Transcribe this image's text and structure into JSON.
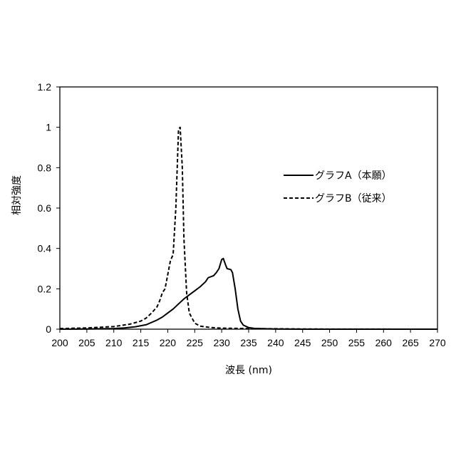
{
  "chart_data": {
    "type": "line",
    "title": "",
    "xlabel": "波長 (nm)",
    "ylabel": "相対強度",
    "xlim": [
      200,
      270
    ],
    "ylim": [
      0,
      1.2
    ],
    "x_ticks": [
      200,
      205,
      210,
      215,
      220,
      225,
      230,
      235,
      240,
      245,
      250,
      255,
      260,
      265,
      270
    ],
    "y_ticks": [
      0,
      0.2,
      0.4,
      0.6,
      0.8,
      1,
      1.2
    ],
    "y_tick_labels": [
      "0",
      "0.2",
      "0.4",
      "0.6",
      "0.8",
      "1",
      "1.2"
    ],
    "grid": false,
    "legend_position": "right",
    "series": [
      {
        "name": "グラフA（本願）",
        "style": "solid",
        "color": "#000000",
        "points": [
          [
            200,
            0
          ],
          [
            205,
            0.001
          ],
          [
            210,
            0.003
          ],
          [
            212,
            0.006
          ],
          [
            214,
            0.012
          ],
          [
            216,
            0.022
          ],
          [
            218,
            0.045
          ],
          [
            219,
            0.06
          ],
          [
            220,
            0.08
          ],
          [
            221,
            0.1
          ],
          [
            222,
            0.125
          ],
          [
            223,
            0.15
          ],
          [
            224,
            0.17
          ],
          [
            225,
            0.19
          ],
          [
            226,
            0.21
          ],
          [
            227,
            0.235
          ],
          [
            227.5,
            0.255
          ],
          [
            228.5,
            0.265
          ],
          [
            229,
            0.28
          ],
          [
            229.5,
            0.3
          ],
          [
            230,
            0.345
          ],
          [
            230.3,
            0.35
          ],
          [
            230.7,
            0.32
          ],
          [
            231,
            0.3
          ],
          [
            231.7,
            0.295
          ],
          [
            232,
            0.28
          ],
          [
            232.5,
            0.2
          ],
          [
            233,
            0.1
          ],
          [
            233.5,
            0.04
          ],
          [
            234,
            0.02
          ],
          [
            235,
            0.008
          ],
          [
            236,
            0.004
          ],
          [
            238,
            0.002
          ],
          [
            240,
            0.001
          ],
          [
            245,
            0
          ],
          [
            270,
            0
          ]
        ]
      },
      {
        "name": "グラフB（従来）",
        "style": "dashed",
        "color": "#000000",
        "points": [
          [
            200,
            0.003
          ],
          [
            205,
            0.006
          ],
          [
            210,
            0.013
          ],
          [
            213,
            0.025
          ],
          [
            215,
            0.04
          ],
          [
            216,
            0.055
          ],
          [
            217,
            0.08
          ],
          [
            218,
            0.11
          ],
          [
            218.5,
            0.14
          ],
          [
            219,
            0.18
          ],
          [
            219.5,
            0.2
          ],
          [
            220,
            0.27
          ],
          [
            220.5,
            0.34
          ],
          [
            221,
            0.37
          ],
          [
            221.5,
            0.6
          ],
          [
            222,
            0.99
          ],
          [
            222.3,
            1.0
          ],
          [
            222.7,
            0.8
          ],
          [
            223,
            0.45
          ],
          [
            223.5,
            0.18
          ],
          [
            224,
            0.08
          ],
          [
            225,
            0.03
          ],
          [
            226,
            0.015
          ],
          [
            228,
            0.008
          ],
          [
            230,
            0.005
          ],
          [
            235,
            0.003
          ],
          [
            240,
            0.002
          ],
          [
            245,
            0.001
          ],
          [
            250,
            0.0005
          ],
          [
            270,
            0
          ]
        ]
      }
    ]
  }
}
